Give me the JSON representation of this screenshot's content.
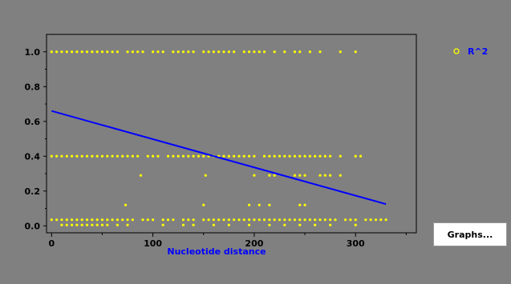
{
  "chart_data": {
    "type": "scatter",
    "title": "",
    "xlabel": "Nucleotide distance",
    "ylabel": "",
    "xlim": [
      -5,
      360
    ],
    "ylim": [
      -0.04,
      1.1
    ],
    "x_ticks": [
      0,
      100,
      200,
      300
    ],
    "y_ticks": [
      0.0,
      0.2,
      0.4,
      0.6,
      0.8,
      1.0
    ],
    "x_tick_labels": [
      "0",
      "100",
      "200",
      "300"
    ],
    "y_tick_labels": [
      "0.0",
      "0.2",
      "0.4",
      "0.6",
      "0.8",
      "1.0"
    ],
    "legend": {
      "position": "top-right",
      "entries": [
        "R^2"
      ]
    },
    "grid": false,
    "colors": {
      "background": "#808080",
      "plot_border": "#000000",
      "points": "#ffff00",
      "trend_line": "#0000ff",
      "axis_title": "#0000ff",
      "legend_text": "#0000ff"
    },
    "series": [
      {
        "name": "R^2",
        "type": "scatter",
        "x": [
          0,
          5,
          10,
          15,
          20,
          25,
          30,
          35,
          40,
          45,
          50,
          55,
          60,
          65,
          75,
          80,
          85,
          90,
          100,
          105,
          110,
          120,
          125,
          130,
          135,
          140,
          150,
          155,
          160,
          165,
          170,
          175,
          180,
          190,
          195,
          200,
          205,
          210,
          220,
          230,
          240,
          245,
          255,
          265,
          285,
          300,
          0,
          5,
          10,
          15,
          20,
          25,
          30,
          35,
          40,
          45,
          50,
          55,
          60,
          65,
          70,
          75,
          80,
          85,
          95,
          100,
          105,
          115,
          120,
          125,
          130,
          135,
          140,
          145,
          150,
          155,
          160,
          165,
          170,
          175,
          180,
          185,
          190,
          195,
          200,
          210,
          215,
          220,
          225,
          230,
          235,
          240,
          245,
          250,
          255,
          260,
          265,
          270,
          275,
          285,
          300,
          305,
          88,
          152,
          200,
          215,
          220,
          240,
          245,
          250,
          265,
          270,
          275,
          285,
          73,
          150,
          195,
          205,
          215,
          245,
          250,
          0,
          5,
          10,
          15,
          20,
          25,
          30,
          35,
          40,
          45,
          50,
          55,
          60,
          65,
          70,
          75,
          80,
          90,
          95,
          100,
          110,
          115,
          120,
          130,
          135,
          140,
          150,
          155,
          160,
          165,
          170,
          175,
          180,
          185,
          190,
          195,
          200,
          205,
          210,
          215,
          220,
          225,
          230,
          235,
          240,
          245,
          250,
          255,
          260,
          265,
          270,
          275,
          280,
          290,
          295,
          300,
          310,
          315,
          320,
          325,
          330,
          10,
          15,
          20,
          25,
          30,
          35,
          40,
          45,
          50,
          55,
          65,
          75,
          110,
          130,
          140,
          160,
          175,
          195,
          215,
          230,
          245,
          260,
          275,
          300
        ],
        "y": [
          1,
          1,
          1,
          1,
          1,
          1,
          1,
          1,
          1,
          1,
          1,
          1,
          1,
          1,
          1,
          1,
          1,
          1,
          1,
          1,
          1,
          1,
          1,
          1,
          1,
          1,
          1,
          1,
          1,
          1,
          1,
          1,
          1,
          1,
          1,
          1,
          1,
          1,
          1,
          1,
          1,
          1,
          1,
          1,
          1,
          1,
          0.4,
          0.4,
          0.4,
          0.4,
          0.4,
          0.4,
          0.4,
          0.4,
          0.4,
          0.4,
          0.4,
          0.4,
          0.4,
          0.4,
          0.4,
          0.4,
          0.4,
          0.4,
          0.4,
          0.4,
          0.4,
          0.4,
          0.4,
          0.4,
          0.4,
          0.4,
          0.4,
          0.4,
          0.4,
          0.4,
          0.4,
          0.4,
          0.4,
          0.4,
          0.4,
          0.4,
          0.4,
          0.4,
          0.4,
          0.4,
          0.4,
          0.4,
          0.4,
          0.4,
          0.4,
          0.4,
          0.4,
          0.4,
          0.4,
          0.4,
          0.4,
          0.4,
          0.4,
          0.4,
          0.4,
          0.4,
          0.29,
          0.29,
          0.29,
          0.29,
          0.29,
          0.29,
          0.29,
          0.29,
          0.29,
          0.29,
          0.29,
          0.29,
          0.12,
          0.12,
          0.12,
          0.12,
          0.12,
          0.12,
          0.12,
          0.035,
          0.035,
          0.035,
          0.035,
          0.035,
          0.035,
          0.035,
          0.035,
          0.035,
          0.035,
          0.035,
          0.035,
          0.035,
          0.035,
          0.035,
          0.035,
          0.035,
          0.035,
          0.035,
          0.035,
          0.035,
          0.035,
          0.035,
          0.035,
          0.035,
          0.035,
          0.035,
          0.035,
          0.035,
          0.035,
          0.035,
          0.035,
          0.035,
          0.035,
          0.035,
          0.035,
          0.035,
          0.035,
          0.035,
          0.035,
          0.035,
          0.035,
          0.035,
          0.035,
          0.035,
          0.035,
          0.035,
          0.035,
          0.035,
          0.035,
          0.035,
          0.035,
          0.035,
          0.035,
          0.035,
          0.035,
          0.035,
          0.035,
          0.035,
          0.035,
          0.035,
          0.005,
          0.005,
          0.005,
          0.005,
          0.005,
          0.005,
          0.005,
          0.005,
          0.005,
          0.005,
          0.005,
          0.005,
          0.005,
          0.005,
          0.005,
          0.005,
          0.005,
          0.005,
          0.005,
          0.005,
          0.005,
          0.005,
          0.005,
          0.005
        ]
      },
      {
        "type": "line",
        "x": [
          0,
          330
        ],
        "y": [
          0.66,
          0.125
        ]
      }
    ]
  },
  "controls": {
    "graphs_button_label": "Graphs..."
  }
}
